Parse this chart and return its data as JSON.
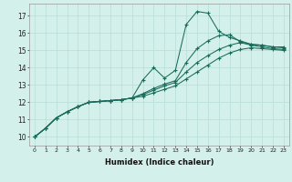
{
  "xlabel": "Humidex (Indice chaleur)",
  "xlim": [
    -0.5,
    23.5
  ],
  "ylim": [
    9.5,
    17.7
  ],
  "yticks": [
    10,
    11,
    12,
    13,
    14,
    15,
    16,
    17
  ],
  "xticks": [
    0,
    1,
    2,
    3,
    4,
    5,
    6,
    7,
    8,
    9,
    10,
    11,
    12,
    13,
    14,
    15,
    16,
    17,
    18,
    19,
    20,
    21,
    22,
    23
  ],
  "bg_color": "#d4f0eb",
  "grid_color": "#b8ddd7",
  "line_color": "#1a6b5a",
  "series": [
    [
      10.0,
      10.5,
      11.1,
      11.45,
      11.75,
      12.0,
      12.05,
      12.1,
      12.15,
      12.25,
      13.3,
      14.0,
      13.4,
      13.85,
      16.5,
      17.25,
      17.15,
      16.1,
      15.75,
      15.55,
      15.35,
      15.3,
      15.2,
      15.2
    ],
    [
      10.0,
      10.5,
      11.1,
      11.45,
      11.75,
      12.0,
      12.05,
      12.1,
      12.15,
      12.25,
      12.5,
      12.8,
      13.05,
      13.25,
      14.3,
      15.1,
      15.55,
      15.85,
      15.9,
      15.5,
      15.35,
      15.3,
      15.2,
      15.15
    ],
    [
      10.0,
      10.5,
      11.1,
      11.45,
      11.75,
      12.0,
      12.05,
      12.1,
      12.15,
      12.25,
      12.45,
      12.7,
      12.95,
      13.15,
      13.75,
      14.3,
      14.7,
      15.05,
      15.3,
      15.45,
      15.3,
      15.2,
      15.1,
      15.05
    ],
    [
      10.0,
      10.5,
      11.1,
      11.45,
      11.75,
      12.0,
      12.05,
      12.1,
      12.15,
      12.25,
      12.35,
      12.55,
      12.75,
      12.95,
      13.35,
      13.75,
      14.15,
      14.55,
      14.85,
      15.05,
      15.15,
      15.1,
      15.05,
      15.0
    ]
  ]
}
